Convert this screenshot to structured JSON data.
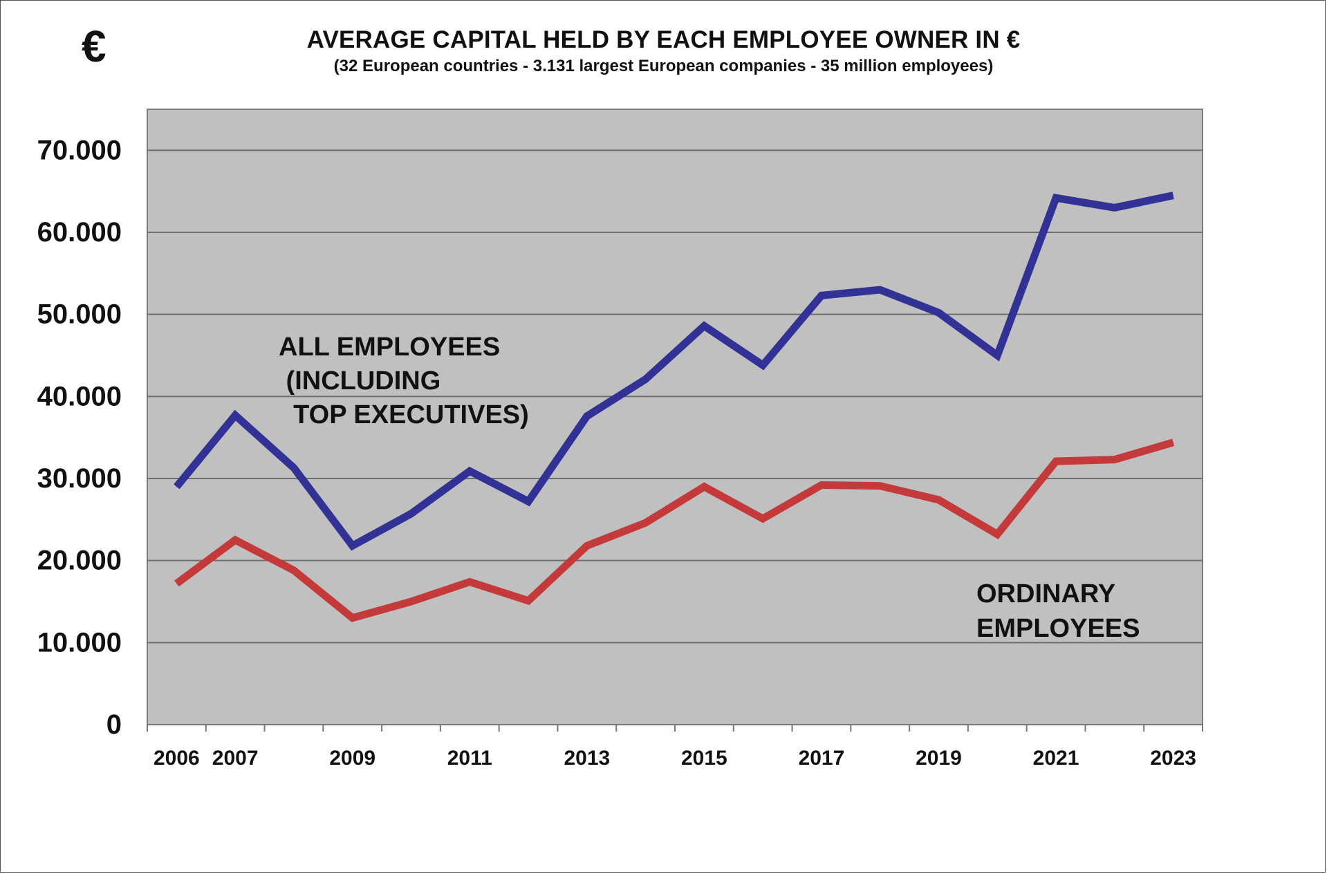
{
  "chart_data": {
    "type": "line",
    "title": "AVERAGE CAPITAL HELD BY EACH EMPLOYEE OWNER IN  €",
    "subtitle": "(32 European countries - 3.131 largest European companies - 35 million employees)",
    "unit_symbol": "€",
    "xlabel": "",
    "ylabel": "",
    "x": [
      2006,
      2007,
      2008,
      2009,
      2010,
      2011,
      2012,
      2013,
      2014,
      2015,
      2016,
      2017,
      2018,
      2019,
      2020,
      2021,
      2022,
      2023
    ],
    "x_tick_labels": [
      "2006",
      "2007",
      "",
      "2009",
      "",
      "2011",
      "",
      "2013",
      "",
      "2015",
      "",
      "2017",
      "",
      "2019",
      "",
      "2021",
      "",
      "2023"
    ],
    "y_tick_labels": [
      "0",
      "10.000",
      "20.000",
      "30.000",
      "40.000",
      "50.000",
      "60.000",
      "70.000"
    ],
    "y_ticks": [
      0,
      10000,
      20000,
      30000,
      40000,
      50000,
      60000,
      70000
    ],
    "ylim": [
      0,
      75000
    ],
    "grid": true,
    "series": [
      {
        "name": "ALL EMPLOYEES\n (INCLUDING\n  TOP EXECUTIVES)",
        "color": "#323296",
        "values": [
          29000,
          37700,
          31300,
          21800,
          25700,
          30900,
          27200,
          37600,
          42100,
          48600,
          43800,
          52300,
          53000,
          50200,
          45000,
          64200,
          63000,
          64500
        ]
      },
      {
        "name": "ORDINARY\nEMPLOYEES",
        "color": "#c43a3a",
        "values": [
          17200,
          22500,
          18800,
          13000,
          15000,
          17400,
          15100,
          21800,
          24600,
          29000,
          25100,
          29200,
          29100,
          27400,
          23200,
          32100,
          32300,
          34400
        ]
      }
    ],
    "colors": {
      "plot_background": "#c0c0c0",
      "gridline": "#6e6e6e"
    }
  }
}
